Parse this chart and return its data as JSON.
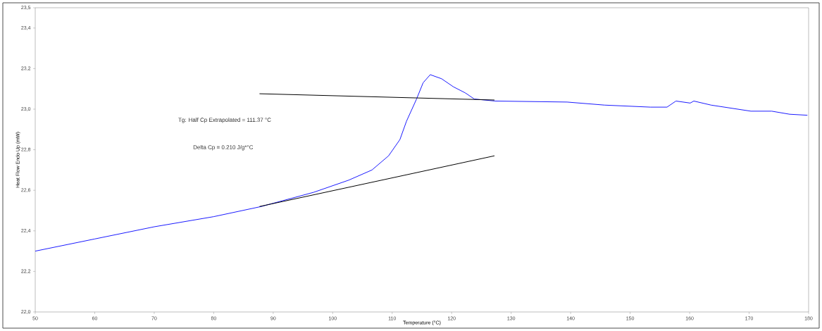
{
  "chart_data": {
    "type": "line",
    "xlabel": "Temperature (°C)",
    "ylabel": "Heat Flow Endo Up (mW)",
    "annotations": [
      "Tg: Half Cp Extrapolated = 111.37 °C",
      "Delta Cp = 0.210 J/g*°C"
    ],
    "xlim": [
      50,
      180
    ],
    "xticks": [
      50,
      60,
      70,
      80,
      90,
      100,
      110,
      120,
      130,
      140,
      150,
      160,
      170,
      180
    ],
    "ylim": [
      22.0,
      23.5
    ],
    "yticks": [
      {
        "value": 22.0,
        "label": "22,0"
      },
      {
        "value": 22.2,
        "label": "22,2"
      },
      {
        "value": 22.4,
        "label": "22,4"
      },
      {
        "value": 22.6,
        "label": "22,6"
      },
      {
        "value": 22.8,
        "label": "22,8"
      },
      {
        "value": 23.0,
        "label": "23,0"
      },
      {
        "value": 23.2,
        "label": "23,2"
      },
      {
        "value": 23.4,
        "label": "23,4"
      },
      {
        "value": 23.5,
        "label": "23,5"
      }
    ],
    "grid": false,
    "marker": "none",
    "series": [
      {
        "color": "#1a1aff",
        "x": [
          50,
          60,
          70,
          80,
          88,
          96.8,
          102.7,
          106.6,
          109.4,
          111.3,
          112.4,
          114.1,
          115.2,
          116.4,
          118.3,
          120.3,
          122.3,
          123.8,
          127.3,
          139.4,
          145.7,
          153.4,
          156.2,
          157.7,
          160.1,
          160.7,
          163.6,
          170.3,
          173.8,
          176.8,
          179.8
        ],
        "values": [
          22.3,
          22.36,
          22.42,
          22.47,
          22.52,
          22.59,
          22.65,
          22.7,
          22.77,
          22.85,
          22.94,
          23.05,
          23.13,
          23.17,
          23.15,
          23.11,
          23.08,
          23.05,
          23.04,
          23.035,
          23.02,
          23.01,
          23.01,
          23.04,
          23.03,
          23.04,
          23.02,
          22.99,
          22.99,
          22.975,
          22.97
        ]
      },
      {
        "color": "#000000",
        "x": [
          87.7,
          127.2
        ],
        "values": [
          23.076,
          23.045
        ]
      },
      {
        "color": "#000000",
        "x": [
          87.7,
          127.2
        ],
        "values": [
          22.52,
          22.77
        ]
      }
    ]
  }
}
